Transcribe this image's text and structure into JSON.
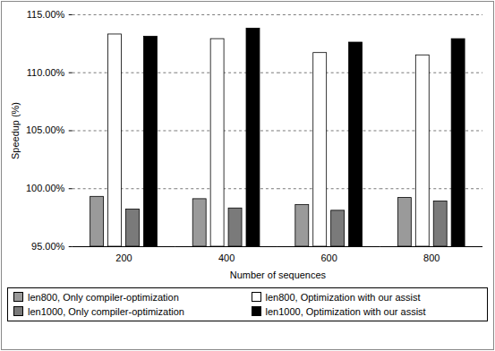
{
  "chart_data": {
    "type": "bar",
    "x_label": "Number of sequences",
    "y_label": "Speedup (%)",
    "categories": [
      200,
      400,
      600,
      800
    ],
    "series": [
      {
        "name": "len800, Only compiler-optimization",
        "color": "#9a9a9a",
        "values": [
          99.3,
          99.1,
          98.6,
          99.2
        ]
      },
      {
        "name": "len800, Optimization with our assist",
        "color": "#ffffff",
        "values": [
          113.3,
          112.9,
          111.7,
          111.5
        ]
      },
      {
        "name": "len1000, Only compiler-optimization",
        "color": "#7a7a7a",
        "values": [
          98.2,
          98.3,
          98.1,
          98.9
        ]
      },
      {
        "name": "len1000, Optimization with our assist",
        "color": "#000000",
        "values": [
          113.1,
          113.8,
          112.6,
          112.9
        ]
      }
    ],
    "ylim": [
      95,
      115
    ],
    "yticks": [
      {
        "value": 95,
        "label": "95.00%"
      },
      {
        "value": 100,
        "label": "100.00%"
      },
      {
        "value": 105,
        "label": "105.00%"
      },
      {
        "value": 110,
        "label": "110.00%"
      },
      {
        "value": 115,
        "label": "115.00%"
      }
    ],
    "grid": true,
    "legend": "bottom"
  }
}
